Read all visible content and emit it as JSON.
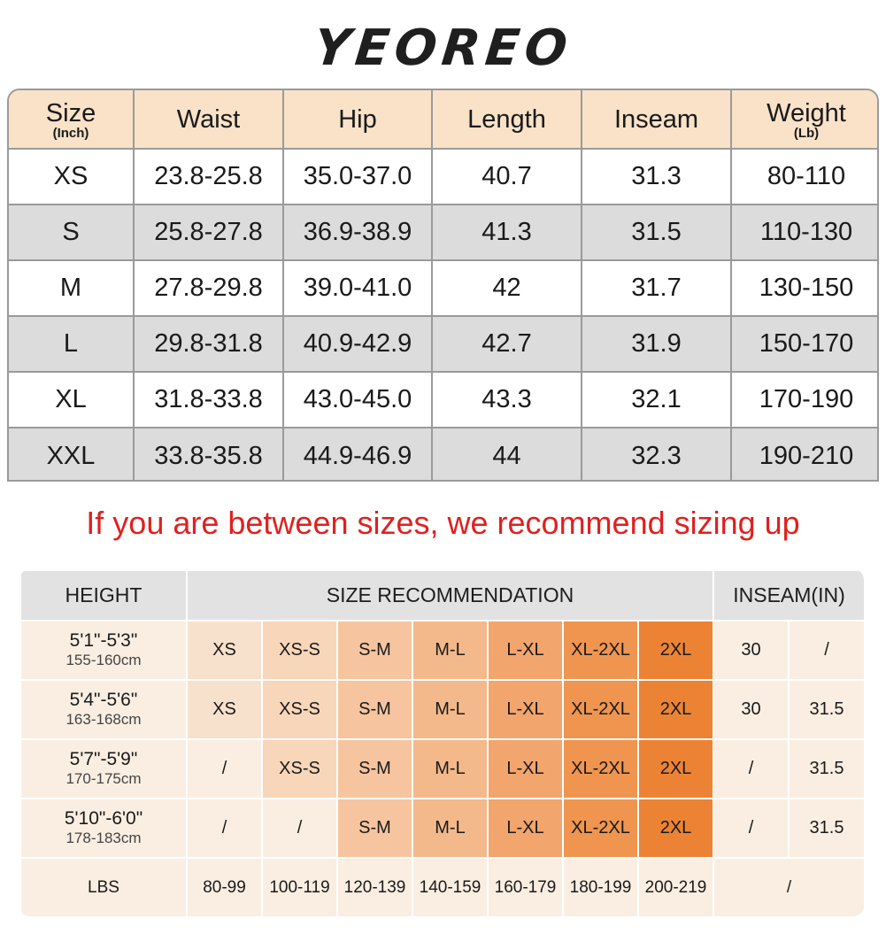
{
  "brand": "YEOREO",
  "size_table": {
    "headers": [
      {
        "main": "Size",
        "sub": "(Inch)"
      },
      {
        "main": "Waist",
        "sub": ""
      },
      {
        "main": "Hip",
        "sub": ""
      },
      {
        "main": "Length",
        "sub": ""
      },
      {
        "main": "Inseam",
        "sub": ""
      },
      {
        "main": "Weight",
        "sub": "(Lb)"
      }
    ],
    "rows": [
      [
        "XS",
        "23.8-25.8",
        "35.0-37.0",
        "40.7",
        "31.3",
        "80-110"
      ],
      [
        "S",
        "25.8-27.8",
        "36.9-38.9",
        "41.3",
        "31.5",
        "110-130"
      ],
      [
        "M",
        "27.8-29.8",
        "39.0-41.0",
        "42",
        "31.7",
        "130-150"
      ],
      [
        "L",
        "29.8-31.8",
        "40.9-42.9",
        "42.7",
        "31.9",
        "150-170"
      ],
      [
        "XL",
        "31.8-33.8",
        "43.0-45.0",
        "43.3",
        "32.1",
        "170-190"
      ],
      [
        "XXL",
        "33.8-35.8",
        "44.9-46.9",
        "44",
        "32.3",
        "190-210"
      ]
    ]
  },
  "note": "If you are between sizes, we recommend sizing up",
  "rec_table": {
    "headers": {
      "height": "HEIGHT",
      "size_rec": "SIZE RECOMMENDATION",
      "inseam": "INSEAM(IN)"
    },
    "rows": [
      {
        "height": "5'1\"-5'3\"",
        "cm": "155-160cm",
        "sizes": [
          "XS",
          "XS-S",
          "S-M",
          "M-L",
          "L-XL",
          "XL-2XL",
          "2XL"
        ],
        "inseam": [
          "30",
          "/"
        ]
      },
      {
        "height": "5'4\"-5'6\"",
        "cm": "163-168cm",
        "sizes": [
          "XS",
          "XS-S",
          "S-M",
          "M-L",
          "L-XL",
          "XL-2XL",
          "2XL"
        ],
        "inseam": [
          "30",
          "31.5"
        ]
      },
      {
        "height": "5'7\"-5'9\"",
        "cm": "170-175cm",
        "sizes": [
          "/",
          "XS-S",
          "S-M",
          "M-L",
          "L-XL",
          "XL-2XL",
          "2XL"
        ],
        "inseam": [
          "/",
          "31.5"
        ]
      },
      {
        "height": "5'10\"-6'0\"",
        "cm": "178-183cm",
        "sizes": [
          "/",
          "/",
          "S-M",
          "M-L",
          "L-XL",
          "XL-2XL",
          "2XL"
        ],
        "inseam": [
          "/",
          "31.5"
        ]
      }
    ],
    "lbs": {
      "label": "LBS",
      "values": [
        "80-99",
        "100-119",
        "120-139",
        "140-159",
        "160-179",
        "180-199",
        "200-219"
      ],
      "inseam": "/"
    }
  }
}
